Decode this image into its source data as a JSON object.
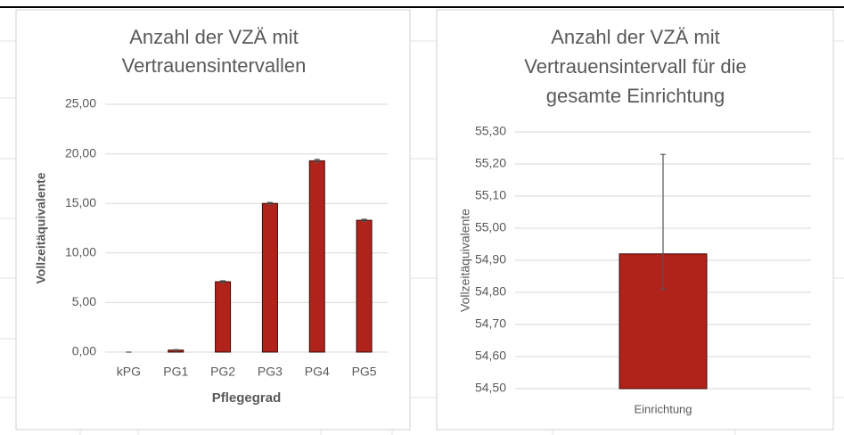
{
  "chart_data": [
    {
      "type": "bar",
      "title": [
        "Anzahl der VZÄ  mit",
        "Vertrauensintervallen"
      ],
      "x_label": "Pflegegrad",
      "y_label": "Vollzeitäquivalente",
      "categories": [
        "kPG",
        "PG1",
        "PG2",
        "PG3",
        "PG4",
        "PG5"
      ],
      "values": [
        0,
        0.2,
        7.1,
        15.0,
        19.3,
        13.3
      ],
      "error_minus": [
        0,
        0.05,
        0.1,
        0.1,
        0.15,
        0.1
      ],
      "error_plus": [
        0,
        0.05,
        0.1,
        0.1,
        0.15,
        0.1
      ],
      "color": "#b0231a",
      "ylim": [
        0,
        25
      ],
      "yticks": [
        {
          "value": 0,
          "label": "0,00"
        },
        {
          "value": 5,
          "label": "5,00"
        },
        {
          "value": 10,
          "label": "10,00"
        },
        {
          "value": 15,
          "label": "15,00"
        },
        {
          "value": 20,
          "label": "20,00"
        },
        {
          "value": 25,
          "label": "25,00"
        }
      ],
      "grid": true
    },
    {
      "type": "bar",
      "title": [
        "Anzahl der VZÄ mit",
        "Vertrauensintervall für die",
        "gesamte Einrichtung"
      ],
      "y_label": "Vollzeitäquivalente",
      "categories": [
        "Einrichtung"
      ],
      "values": [
        54.92
      ],
      "error_minus": [
        0.11
      ],
      "error_plus": [
        0.31
      ],
      "color": "#b0231a",
      "ylim": [
        54.5,
        55.3
      ],
      "yticks": [
        {
          "value": 54.5,
          "label": "54,50"
        },
        {
          "value": 54.6,
          "label": "54,60"
        },
        {
          "value": 54.7,
          "label": "54,70"
        },
        {
          "value": 54.8,
          "label": "54,80"
        },
        {
          "value": 54.9,
          "label": "54,90"
        },
        {
          "value": 55.0,
          "label": "55,00"
        },
        {
          "value": 55.1,
          "label": "55,10"
        },
        {
          "value": 55.2,
          "label": "55,20"
        },
        {
          "value": 55.3,
          "label": "55,30"
        }
      ],
      "grid": true
    }
  ]
}
